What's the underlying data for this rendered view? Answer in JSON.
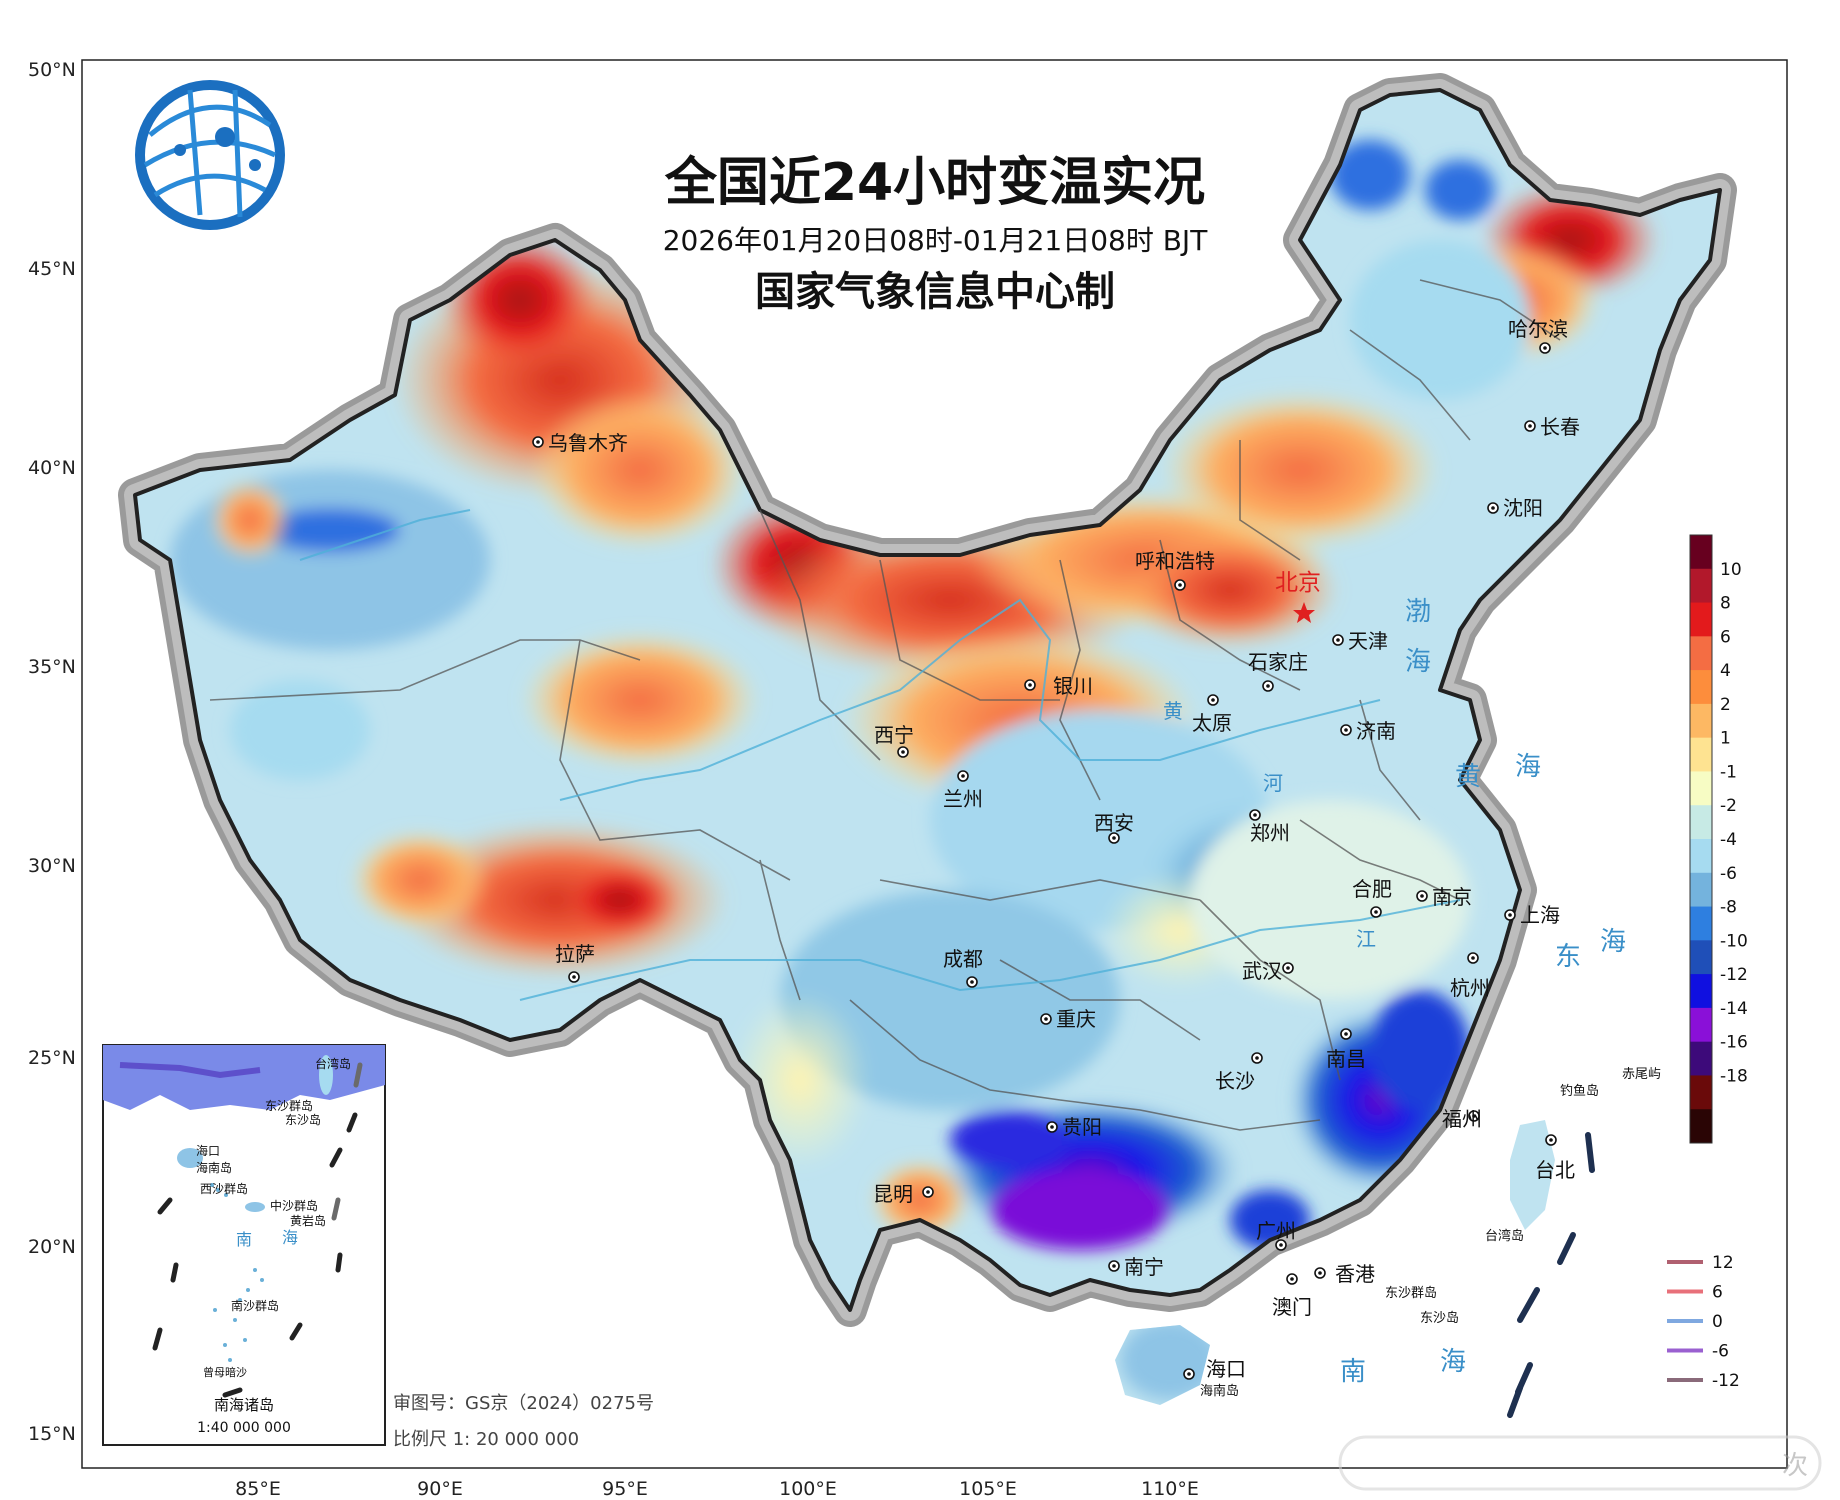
{
  "title": {
    "main": "全国近24小时变温实况",
    "period": "2026年01月20日08时-01月21日08时 BJT",
    "producer": "国家气象信息中心制"
  },
  "axes": {
    "latitude_labels": [
      "50°N",
      "45°N",
      "40°N",
      "35°N",
      "30°N",
      "25°N",
      "20°N",
      "15°N"
    ],
    "longitude_labels": [
      "85°E",
      "90°E",
      "95°E",
      "100°E",
      "105°E",
      "110°E"
    ]
  },
  "cities": [
    {
      "name": "乌鲁木齐"
    },
    {
      "name": "哈尔滨"
    },
    {
      "name": "长春"
    },
    {
      "name": "沈阳"
    },
    {
      "name": "呼和浩特"
    },
    {
      "name": "天津"
    },
    {
      "name": "石家庄"
    },
    {
      "name": "银川"
    },
    {
      "name": "太原"
    },
    {
      "name": "济南"
    },
    {
      "name": "西宁"
    },
    {
      "name": "兰州"
    },
    {
      "name": "西安"
    },
    {
      "name": "郑州"
    },
    {
      "name": "合肥"
    },
    {
      "name": "南京"
    },
    {
      "name": "上海"
    },
    {
      "name": "拉萨"
    },
    {
      "name": "成都"
    },
    {
      "name": "武汉"
    },
    {
      "name": "杭州"
    },
    {
      "name": "重庆"
    },
    {
      "name": "南昌"
    },
    {
      "name": "长沙"
    },
    {
      "name": "贵阳"
    },
    {
      "name": "福州"
    },
    {
      "name": "台北"
    },
    {
      "name": "昆明"
    },
    {
      "name": "广州"
    },
    {
      "name": "南宁"
    },
    {
      "name": "香港"
    },
    {
      "name": "澳门"
    },
    {
      "name": "海口"
    }
  ],
  "capital": {
    "name": "北京"
  },
  "seas": [
    "渤",
    "海",
    "黄",
    "海",
    "东",
    "海",
    "南",
    "海"
  ],
  "islands": [
    "赤尾屿",
    "钓鱼岛",
    "台湾岛",
    "东沙群岛",
    "东沙岛",
    "海南岛"
  ],
  "rivers": [
    "黄",
    "河",
    "江"
  ],
  "legend_fill": {
    "colors": [
      "#67001f",
      "#b2182b",
      "#e31a1c",
      "#f46d43",
      "#fd8d3c",
      "#fdb863",
      "#fee391",
      "#f7fcc4",
      "#c7eae5",
      "#a6dbf0",
      "#74b3dd",
      "#2e7fe0",
      "#1f4fb8",
      "#1010e0",
      "#8a10d8",
      "#3d0a7a",
      "#6a0a0a",
      "#2a0505"
    ],
    "tick_labels": [
      "10",
      "8",
      "6",
      "4",
      "2",
      "1",
      "-1",
      "-2",
      "-4",
      "-6",
      "-8",
      "-10",
      "-12",
      "-14",
      "-16",
      "-18"
    ]
  },
  "legend_lines": [
    {
      "label": "12",
      "color": "#b06070"
    },
    {
      "label": "6",
      "color": "#e8707a"
    },
    {
      "label": "0",
      "color": "#7fa8e0"
    },
    {
      "label": "-6",
      "color": "#9a60d0"
    },
    {
      "label": "-12",
      "color": "#8a6a7a"
    }
  ],
  "inset": {
    "title": "南海诸岛",
    "scale": "1:40 000 000",
    "labels": [
      "台湾岛",
      "东沙群岛",
      "东沙岛",
      "海口",
      "海南岛",
      "西沙群岛",
      "中沙群岛",
      "黄岩岛",
      "南",
      "海",
      "南沙群岛",
      "曾母暗沙"
    ]
  },
  "footer": {
    "review_number": "审图号：GS京（2024）0275号",
    "scale": "比例尺 1: 20 000 000"
  },
  "watermark": "次"
}
